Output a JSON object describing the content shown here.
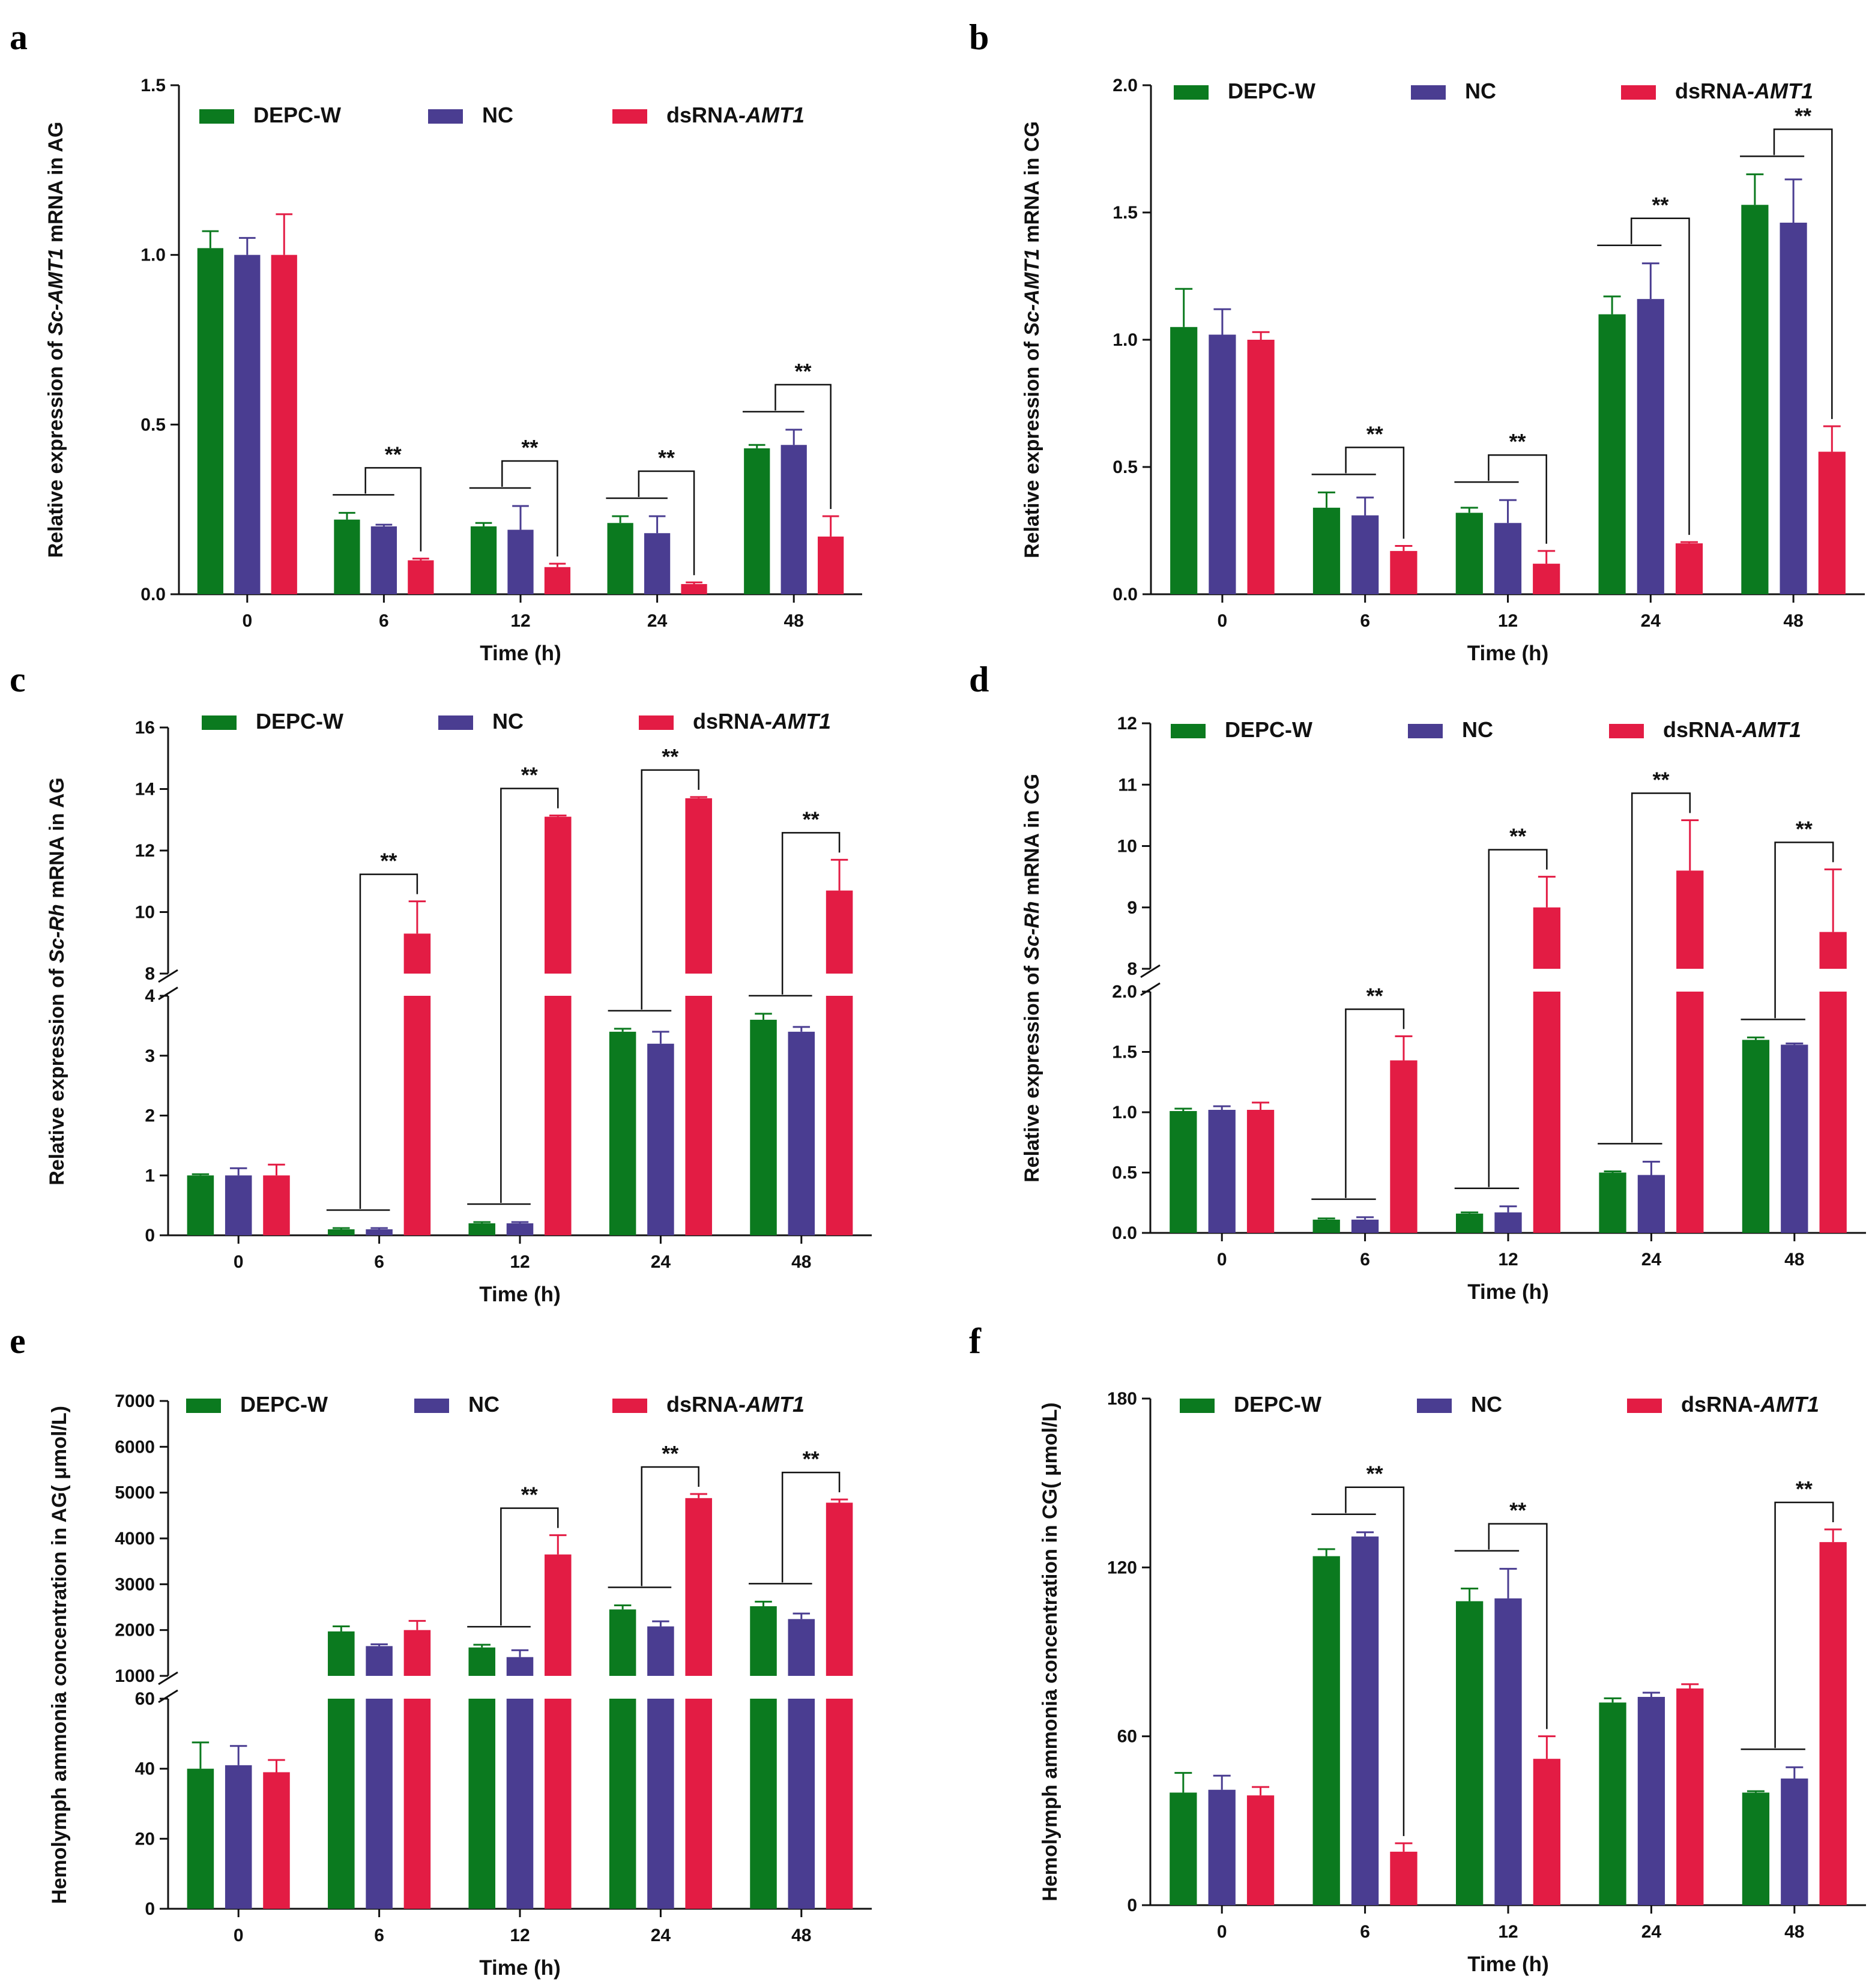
{
  "colors": {
    "DEPC-W": "#0b7a1f",
    "NC": "#4a3d91",
    "dsRNA-AMT1": "#e31c44"
  },
  "chart_data": [
    {
      "panel": "a",
      "type": "bar",
      "categories": [
        "0",
        "6",
        "12",
        "24",
        "48"
      ],
      "series": [
        {
          "name": "DEPC-W",
          "values": [
            1.02,
            0.22,
            0.2,
            0.21,
            0.43
          ],
          "err": [
            0.05,
            0.02,
            0.01,
            0.02,
            0.01
          ]
        },
        {
          "name": "NC",
          "values": [
            1.0,
            0.2,
            0.19,
            0.18,
            0.44
          ],
          "err": [
            0.05,
            0.005,
            0.07,
            0.05,
            0.045
          ]
        },
        {
          "name": "dsRNA",
          "italic": "AMT1",
          "values": [
            1.0,
            0.1,
            0.08,
            0.03,
            0.17
          ],
          "err": [
            0.12,
            0.005,
            0.01,
            0.005,
            0.06
          ]
        }
      ],
      "ylabel_pre": "Relative expression of ",
      "ylabel_it": "Sc-AMT1",
      "ylabel_post": " mRNA in AG",
      "xlabel": "Time (h)",
      "segments": [
        {
          "range": [
            0,
            1.5
          ],
          "ticks": [
            0.0,
            0.5,
            1.0,
            1.5
          ],
          "tick_labels": [
            "0.0",
            "0.5",
            "1.0",
            "1.5"
          ]
        }
      ],
      "significance": [
        "**",
        "**",
        "**",
        "**"
      ],
      "sig_groups": [
        1,
        2,
        3,
        4
      ]
    },
    {
      "panel": "b",
      "type": "bar",
      "categories": [
        "0",
        "6",
        "12",
        "24",
        "48"
      ],
      "series": [
        {
          "name": "DEPC-W",
          "values": [
            1.05,
            0.34,
            0.32,
            1.1,
            1.53
          ],
          "err": [
            0.15,
            0.06,
            0.02,
            0.07,
            0.12
          ]
        },
        {
          "name": "NC",
          "values": [
            1.02,
            0.31,
            0.28,
            1.16,
            1.46
          ],
          "err": [
            0.1,
            0.07,
            0.09,
            0.14,
            0.17
          ]
        },
        {
          "name": "dsRNA",
          "italic": "AMT1",
          "values": [
            1.0,
            0.17,
            0.12,
            0.2,
            0.56
          ],
          "err": [
            0.03,
            0.02,
            0.05,
            0.005,
            0.1
          ]
        }
      ],
      "ylabel_pre": "Relative expression of ",
      "ylabel_it": "Sc-AMT1",
      "ylabel_post": " mRNA in CG",
      "xlabel": "Time (h)",
      "segments": [
        {
          "range": [
            0,
            2.0
          ],
          "ticks": [
            0.0,
            0.5,
            1.0,
            1.5,
            2.0
          ],
          "tick_labels": [
            "0.0",
            "0.5",
            "1.0",
            "1.5",
            "2.0"
          ]
        }
      ],
      "significance": [
        "**",
        "**",
        "**",
        "**"
      ],
      "sig_groups": [
        1,
        2,
        3,
        4
      ]
    },
    {
      "panel": "c",
      "type": "bar",
      "categories": [
        "0",
        "6",
        "12",
        "24",
        "48"
      ],
      "series": [
        {
          "name": "DEPC-W",
          "values": [
            1.0,
            0.1,
            0.2,
            3.4,
            3.6
          ],
          "err": [
            0.02,
            0.02,
            0.02,
            0.05,
            0.1
          ]
        },
        {
          "name": "NC",
          "values": [
            1.0,
            0.1,
            0.2,
            3.2,
            3.4
          ],
          "err": [
            0.12,
            0.02,
            0.02,
            0.2,
            0.08
          ]
        },
        {
          "name": "dsRNA",
          "italic": "AMT1",
          "values": [
            1.0,
            9.3,
            13.1,
            13.7,
            10.7
          ],
          "err": [
            0.18,
            1.05,
            0.04,
            0.04,
            1.0
          ]
        }
      ],
      "ylabel_pre": "Relative expression of ",
      "ylabel_it": "Sc-Rh",
      "ylabel_post": " mRNA in AG",
      "xlabel": "Time (h)",
      "segments": [
        {
          "range": [
            0,
            4
          ],
          "ticks": [
            0,
            1,
            2,
            3,
            4
          ],
          "tick_labels": [
            "0",
            "1",
            "2",
            "3",
            "4"
          ]
        },
        {
          "range": [
            8,
            16
          ],
          "ticks": [
            8,
            10,
            12,
            14,
            16
          ],
          "tick_labels": [
            "8",
            "10",
            "12",
            "14",
            "16"
          ]
        }
      ],
      "significance": [
        "**",
        "**",
        "**",
        "**"
      ],
      "sig_groups": [
        1,
        2,
        3,
        4
      ]
    },
    {
      "panel": "d",
      "type": "bar",
      "categories": [
        "0",
        "6",
        "12",
        "24",
        "48"
      ],
      "series": [
        {
          "name": "DEPC-W",
          "values": [
            1.01,
            0.11,
            0.16,
            0.5,
            1.6
          ],
          "err": [
            0.02,
            0.01,
            0.01,
            0.01,
            0.02
          ]
        },
        {
          "name": "NC",
          "values": [
            1.02,
            0.11,
            0.17,
            0.48,
            1.56
          ],
          "err": [
            0.03,
            0.02,
            0.05,
            0.11,
            0.01
          ]
        },
        {
          "name": "dsRNA",
          "italic": "AMT1",
          "values": [
            1.02,
            1.43,
            9.0,
            9.6,
            8.6
          ],
          "err": [
            0.06,
            0.2,
            0.5,
            0.82,
            1.02
          ]
        }
      ],
      "ylabel_pre": "Relative expression of ",
      "ylabel_it": "Sc-Rh",
      "ylabel_post": " mRNA in CG",
      "xlabel": "Time (h)",
      "segments": [
        {
          "range": [
            0,
            2.0
          ],
          "ticks": [
            0.0,
            0.5,
            1.0,
            1.5,
            2.0
          ],
          "tick_labels": [
            "0.0",
            "0.5",
            "1.0",
            "1.5",
            "2.0"
          ]
        },
        {
          "range": [
            8,
            12
          ],
          "ticks": [
            8,
            9,
            10,
            11,
            12
          ],
          "tick_labels": [
            "8",
            "9",
            "10",
            "11",
            "12"
          ]
        }
      ],
      "significance": [
        "**",
        "**",
        "**",
        "**"
      ],
      "sig_groups": [
        1,
        2,
        3,
        4
      ]
    },
    {
      "panel": "e",
      "type": "bar",
      "categories": [
        "0",
        "6",
        "12",
        "24",
        "48"
      ],
      "series": [
        {
          "name": "DEPC-W",
          "values": [
            40,
            1970,
            1620,
            2450,
            2520
          ],
          "err": [
            7.5,
            110,
            60,
            90,
            100
          ]
        },
        {
          "name": "NC",
          "values": [
            41,
            1650,
            1410,
            2080,
            2240
          ],
          "err": [
            5.5,
            40,
            150,
            110,
            120
          ]
        },
        {
          "name": "dsRNA",
          "italic": "AMT1",
          "values": [
            39,
            2000,
            3650,
            4880,
            4780
          ],
          "err": [
            3.5,
            200,
            420,
            90,
            70
          ]
        }
      ],
      "ylabel_pre": "Hemolymph ammonia concentration in AG",
      "ylabel_it": "",
      "ylabel_post": "( μmol/L)",
      "xlabel": "Time (h)",
      "segments": [
        {
          "range": [
            0,
            60
          ],
          "ticks": [
            0,
            20,
            40,
            60
          ],
          "tick_labels": [
            "0",
            "20",
            "40",
            "60"
          ]
        },
        {
          "range": [
            1000,
            7000
          ],
          "ticks": [
            1000,
            2000,
            3000,
            4000,
            5000,
            6000,
            7000
          ],
          "tick_labels": [
            "1000",
            "2000",
            "3000",
            "4000",
            "5000",
            "6000",
            "7000"
          ]
        }
      ],
      "significance": [
        "**",
        "**",
        "**"
      ],
      "sig_groups": [
        2,
        3,
        4
      ]
    },
    {
      "panel": "f",
      "type": "bar",
      "categories": [
        "0",
        "6",
        "12",
        "24",
        "48"
      ],
      "series": [
        {
          "name": "DEPC-W",
          "values": [
            40,
            124,
            108,
            72,
            40
          ],
          "err": [
            7,
            2.5,
            4.5,
            1.5,
            0.5
          ]
        },
        {
          "name": "NC",
          "values": [
            41,
            131,
            109,
            74,
            45
          ],
          "err": [
            5,
            1.5,
            10.5,
            1.5,
            4
          ]
        },
        {
          "name": "dsRNA",
          "italic": "AMT1",
          "values": [
            39,
            19,
            52,
            77,
            129
          ],
          "err": [
            3,
            3,
            8,
            1.5,
            4.5
          ]
        }
      ],
      "ylabel_pre": "Hemolymph ammonia concentration in CG",
      "ylabel_it": "",
      "ylabel_post": "( μmol/L)",
      "xlabel": "Time (h)",
      "segments": [
        {
          "range": [
            0,
            180
          ],
          "ticks": [
            0,
            60,
            120,
            180
          ],
          "tick_labels": [
            "0",
            "60",
            "120",
            "180"
          ]
        }
      ],
      "significance": [
        "**",
        "**",
        "**"
      ],
      "sig_groups": [
        1,
        2,
        4
      ]
    }
  ]
}
